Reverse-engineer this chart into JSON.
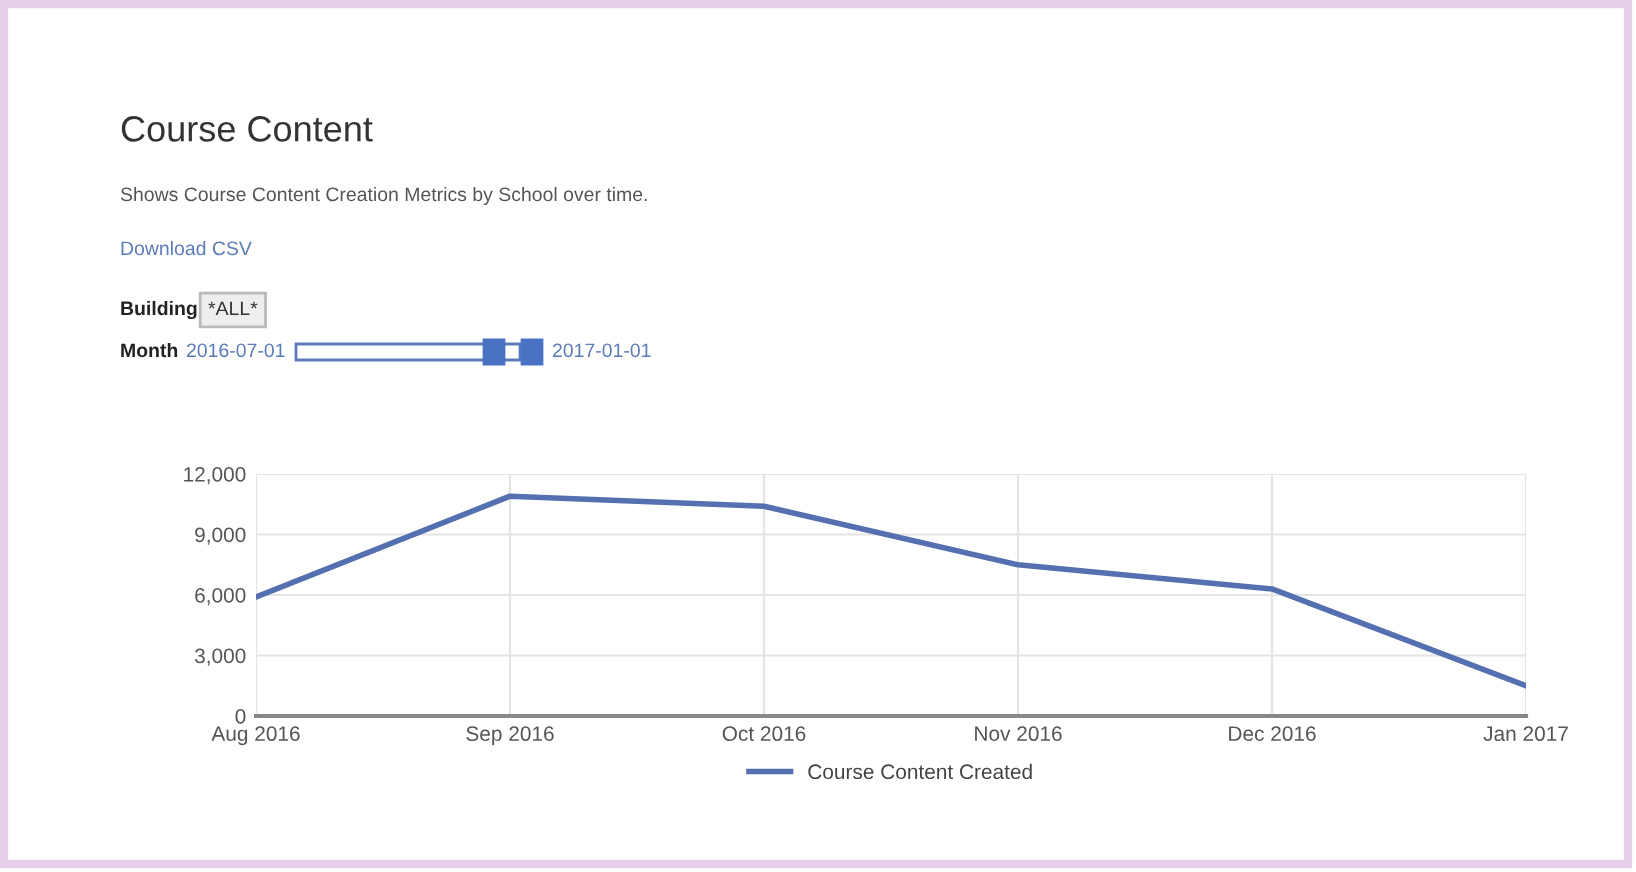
{
  "chart_data": {
    "type": "line",
    "title": "Course Content",
    "subtitle": "Shows Course Content Creation Metrics by School over time.",
    "annotations": [
      "Download CSV",
      "Building",
      "*ALL*",
      "Month",
      "2016-07-01",
      "2017-01-01"
    ],
    "categories": [
      "Aug 2016",
      "Sep 2016",
      "Oct 2016",
      "Nov 2016",
      "Dec 2016",
      "Jan 2017"
    ],
    "series": [
      {
        "name": "Course Content Created",
        "color": "#5470b0",
        "values": [
          5900,
          10900,
          10400,
          7500,
          6300,
          1500
        ]
      }
    ],
    "ylim": [
      0,
      12000
    ],
    "yticks": [
      {
        "value": 0,
        "label": "0"
      },
      {
        "value": 3000,
        "label": "3,000"
      },
      {
        "value": 6000,
        "label": "6,000"
      },
      {
        "value": 9000,
        "label": "9,000"
      },
      {
        "value": 12000,
        "label": "12,000"
      }
    ],
    "grid": true,
    "legend": "bottom",
    "marker": "none",
    "line_style": "solid"
  }
}
